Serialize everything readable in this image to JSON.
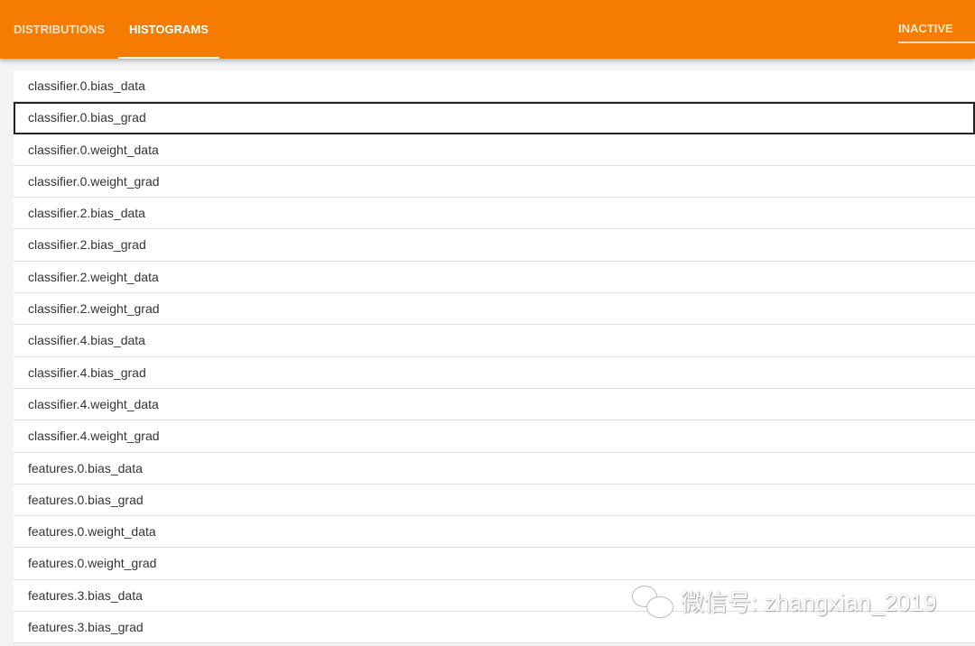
{
  "tabs": [
    {
      "label": "DISTRIBUTIONS",
      "active": false
    },
    {
      "label": "HISTOGRAMS",
      "active": true
    }
  ],
  "run_selector": {
    "label": "INACTIVE"
  },
  "tags": [
    "classifier.0.bias_data",
    "classifier.0.bias_grad",
    "classifier.0.weight_data",
    "classifier.0.weight_grad",
    "classifier.2.bias_data",
    "classifier.2.bias_grad",
    "classifier.2.weight_data",
    "classifier.2.weight_grad",
    "classifier.4.bias_data",
    "classifier.4.bias_grad",
    "classifier.4.weight_data",
    "classifier.4.weight_grad",
    "features.0.bias_data",
    "features.0.bias_grad",
    "features.0.weight_data",
    "features.0.weight_grad",
    "features.3.bias_data",
    "features.3.bias_grad"
  ],
  "focused_index": 1,
  "watermark": {
    "text": "微信号: zhangxian_2019",
    "icon": "wechat-icon"
  },
  "colors": {
    "accent": "#f57c00"
  }
}
